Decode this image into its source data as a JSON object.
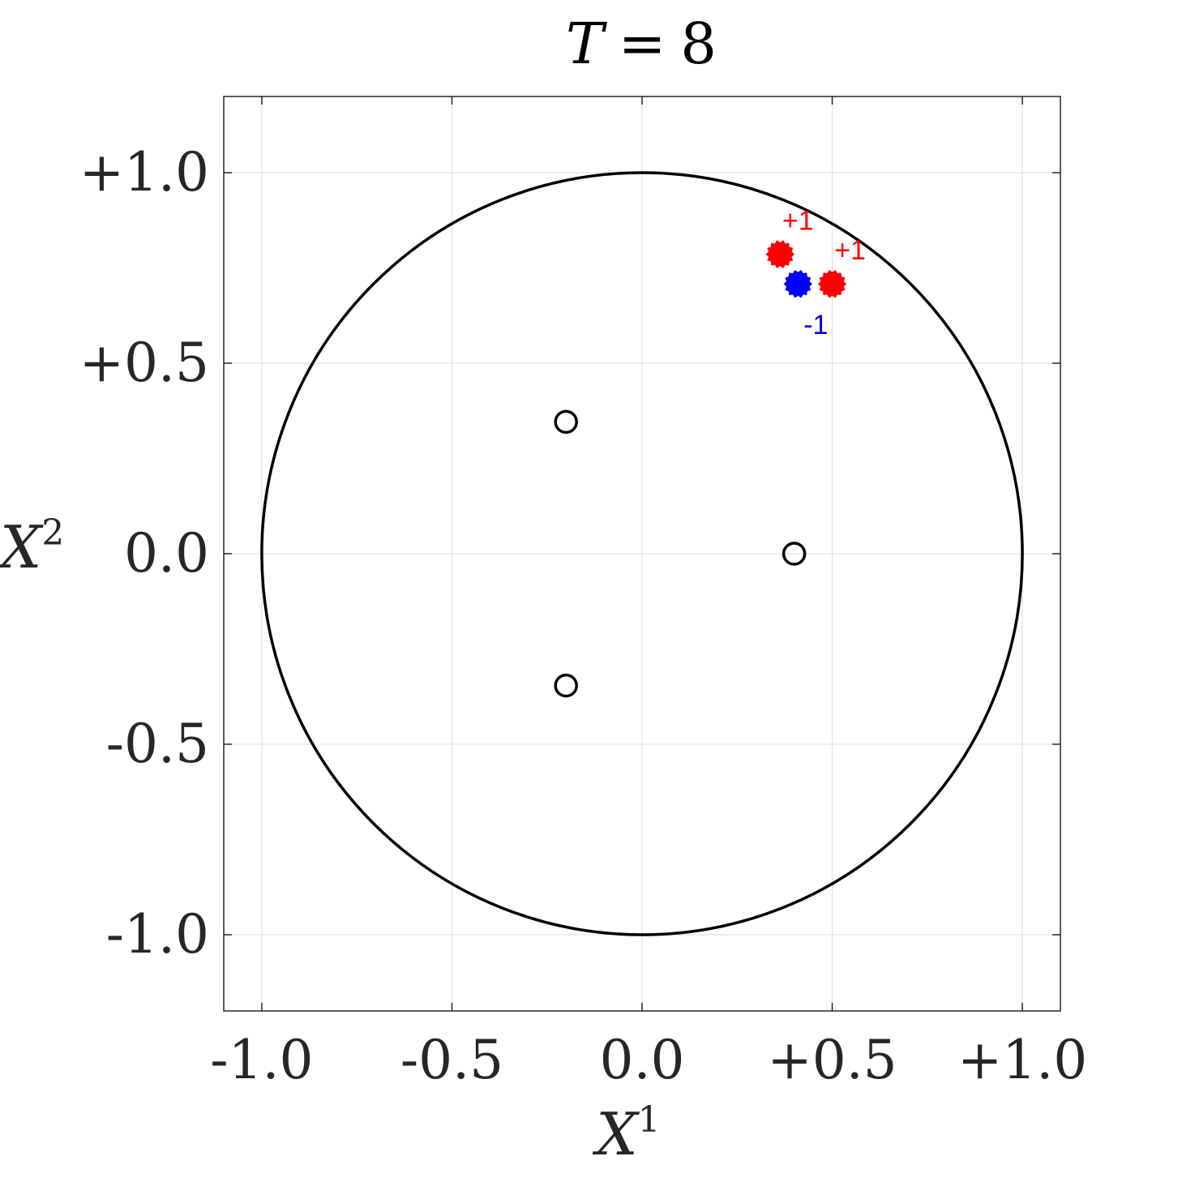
{
  "chart_data": {
    "type": "scatter",
    "title_var": "T",
    "title_eq": "=",
    "title_value": "8",
    "xlabel_var": "X",
    "xlabel_sup": "1",
    "ylabel_var": "X",
    "ylabel_sup": "2",
    "xlim": [
      -1.1,
      1.1
    ],
    "ylim": [
      -1.2,
      1.2
    ],
    "grid": true,
    "xticks": [
      -1.0,
      -0.5,
      0.0,
      0.5,
      1.0
    ],
    "yticks": [
      -1.0,
      -0.5,
      0.0,
      0.5,
      1.0
    ],
    "xtick_labels": [
      "-1.0",
      "-0.5",
      "0.0",
      "+0.5",
      "+1.0"
    ],
    "ytick_labels": [
      "-1.0",
      "-0.5",
      "0.0",
      "+0.5",
      "+1.0"
    ],
    "unit_circle": {
      "cx": 0.0,
      "cy": 0.0,
      "r": 1.0
    },
    "open_markers": [
      {
        "x": 0.4,
        "y": 0.0
      },
      {
        "x": -0.2,
        "y": 0.346
      },
      {
        "x": -0.2,
        "y": -0.346
      }
    ],
    "charges": [
      {
        "x": 0.363,
        "y": 0.786,
        "label": "+1",
        "color": "#ff0000"
      },
      {
        "x": 0.5,
        "y": 0.708,
        "label": "+1",
        "color": "#ff0000"
      },
      {
        "x": 0.41,
        "y": 0.708,
        "label": "-1",
        "color": "#0000ff"
      }
    ]
  }
}
